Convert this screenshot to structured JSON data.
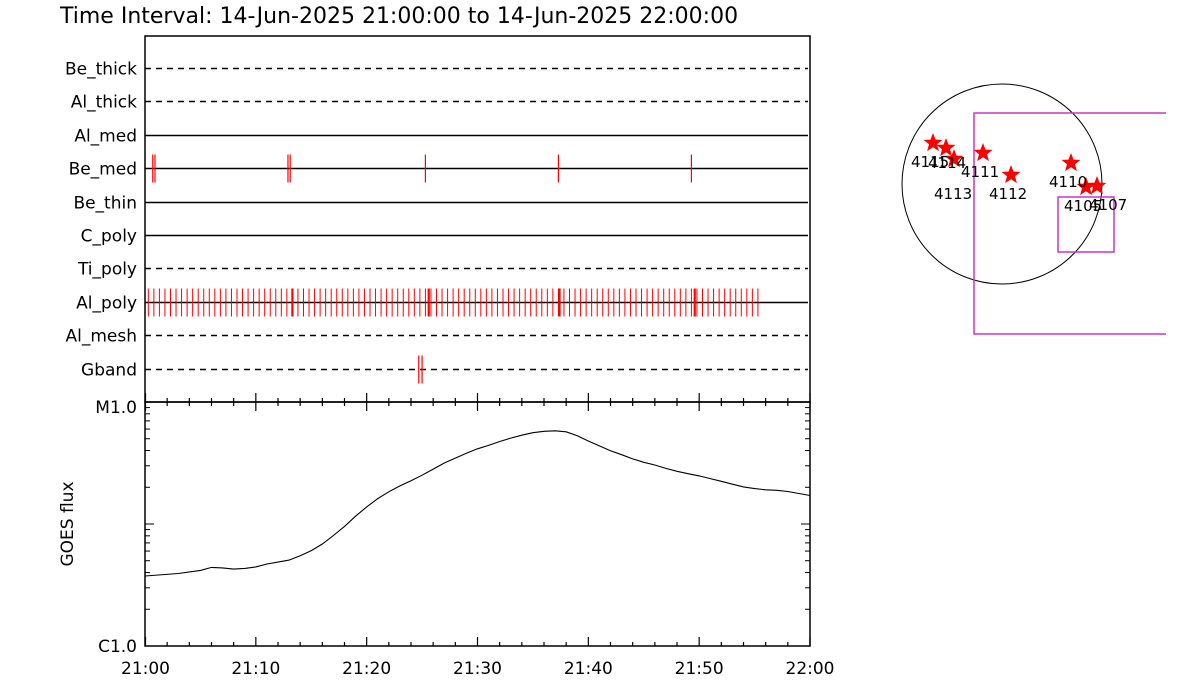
{
  "title": "Time Interval: 14-Jun-2025 21:00:00 to 14-Jun-2025 22:00:00",
  "colors": {
    "line": "#000000",
    "tick": "#ff0000",
    "star": "#ff0000",
    "box": "#cc33cc"
  },
  "chart_data": [
    {
      "type": "timeline",
      "x_range": [
        "21:00",
        "22:00"
      ],
      "xticks": [
        "21:00",
        "21:10",
        "21:20",
        "21:30",
        "21:40",
        "21:50",
        "22:00"
      ],
      "channels": [
        {
          "name": "Be_thick",
          "style": "dashed",
          "events": []
        },
        {
          "name": "Al_thick",
          "style": "dashed",
          "events": []
        },
        {
          "name": "Al_med",
          "style": "solid",
          "events": []
        },
        {
          "name": "Be_med",
          "style": "solid",
          "events": [
            0.7,
            0.9,
            12.9,
            13.1,
            25.3,
            37.3,
            49.3
          ]
        },
        {
          "name": "Be_thin",
          "style": "solid",
          "events": []
        },
        {
          "name": "C_poly",
          "style": "solid",
          "events": []
        },
        {
          "name": "Ti_poly",
          "style": "dashed",
          "events": []
        },
        {
          "name": "Al_poly",
          "style": "solid",
          "events_range": [
            0.3,
            55.5
          ],
          "events_spacing_min": 0.5,
          "major_events": [
            13.3,
            25.6,
            37.4,
            49.6
          ]
        },
        {
          "name": "Al_mesh",
          "style": "dashed",
          "events": []
        },
        {
          "name": "Gband",
          "style": "dashed",
          "events": [
            24.7,
            25.0
          ]
        }
      ]
    },
    {
      "type": "line",
      "ylabel": "GOES flux",
      "ylim_labels": [
        "C1.0",
        "M1.0"
      ],
      "scale": "log",
      "xticks": [
        "21:00",
        "21:10",
        "21:20",
        "21:30",
        "21:40",
        "21:50",
        "22:00"
      ],
      "series": [
        {
          "x_min": [
            0,
            3,
            5,
            6,
            7,
            8,
            9,
            10,
            11,
            12,
            13,
            14,
            15,
            16,
            17,
            18,
            19,
            20,
            21,
            22,
            23,
            24,
            25,
            26,
            27,
            28,
            29,
            30,
            31,
            32,
            33,
            34,
            35,
            36,
            37,
            38,
            39,
            40,
            41,
            42,
            43,
            44,
            45,
            46,
            47,
            48,
            49,
            50,
            51,
            52,
            53,
            54,
            55,
            56,
            57,
            58,
            59,
            60
          ],
          "log_frac": [
            0.287,
            0.297,
            0.31,
            0.322,
            0.32,
            0.315,
            0.318,
            0.324,
            0.336,
            0.344,
            0.352,
            0.37,
            0.391,
            0.418,
            0.453,
            0.49,
            0.532,
            0.57,
            0.604,
            0.632,
            0.656,
            0.677,
            0.7,
            0.725,
            0.75,
            0.77,
            0.79,
            0.808,
            0.822,
            0.838,
            0.852,
            0.864,
            0.874,
            0.88,
            0.882,
            0.878,
            0.862,
            0.84,
            0.82,
            0.8,
            0.784,
            0.767,
            0.753,
            0.742,
            0.728,
            0.716,
            0.706,
            0.697,
            0.686,
            0.675,
            0.663,
            0.652,
            0.645,
            0.64,
            0.638,
            0.633,
            0.625,
            0.617
          ]
        }
      ]
    },
    {
      "type": "scatter",
      "description_only_markers": true,
      "labels": [
        "4115",
        "4114",
        "4113",
        "4111",
        "4112",
        "4110",
        "4105",
        "4107"
      ],
      "points": [
        [
          -0.69,
          0.41
        ],
        [
          -0.56,
          0.36
        ],
        [
          -0.48,
          0.25
        ],
        [
          -0.19,
          0.31
        ],
        [
          0.09,
          0.09
        ],
        [
          0.69,
          0.21
        ],
        [
          0.84,
          -0.03
        ],
        [
          0.95,
          -0.02
        ]
      ]
    }
  ]
}
